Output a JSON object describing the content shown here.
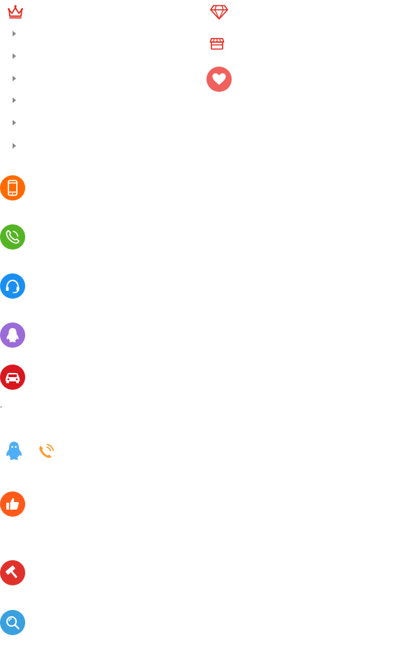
{
  "colors": {
    "crown": "#e1251b",
    "diamond": "#e1251b",
    "store": "#e1251b",
    "heart": "#f0605d",
    "arrow": "#888888",
    "phone": "#ff6a00",
    "call": "#54b424",
    "headset": "#1a8ff0",
    "qq_purple": "#9b6bd8",
    "car": "#d8171e",
    "qq_blue": "#4faef6",
    "ringing_phone": "#ff9a2e",
    "thumb": "#ff5a1a",
    "hammer": "#e0312c",
    "search": "#3aa0de"
  },
  "icons": {
    "crown": "crown-icon",
    "diamond": "diamond-icon",
    "store": "store-icon",
    "heart": "heart-icon",
    "phone": "mobile-phone-icon",
    "call": "telephone-icon",
    "headset": "headset-icon",
    "qq_purple": "qq-penguin-icon",
    "car": "car-icon",
    "qq_blue": "qq-penguin-icon",
    "ringing_phone": "ringing-phone-icon",
    "thumb": "thumbs-up-icon",
    "hammer": "hammer-icon",
    "search": "magnifier-icon"
  },
  "menu": {
    "arrow_count": 6
  }
}
